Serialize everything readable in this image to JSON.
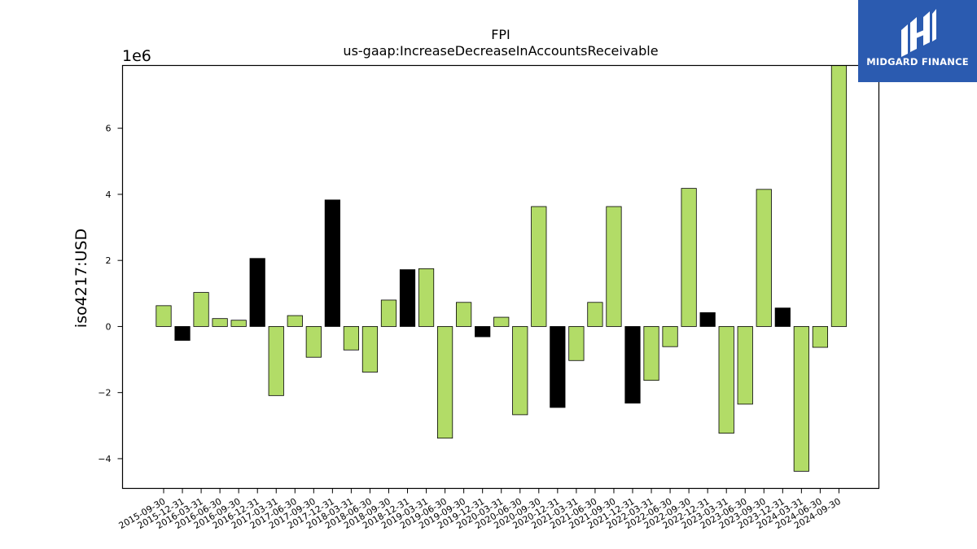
{
  "chart_data": {
    "type": "bar",
    "title": "FPI",
    "subtitle": "us-gaap:IncreaseDecreaseInAccountsReceivable",
    "ylabel": "iso4217:USD",
    "xlabel": "",
    "y_multiplier_label": "1e6",
    "ylim": [
      -4.9,
      7.9
    ],
    "yticks": [
      -4,
      -2,
      0,
      2,
      4,
      6
    ],
    "ytick_labels": [
      "−4",
      "−2",
      "0",
      "2",
      "4",
      "6"
    ],
    "grid": false,
    "legend": "none",
    "colors": {
      "positive": "#b2dc67",
      "negative": "#000000",
      "edge": "#000000"
    },
    "categories": [
      "2015-09-30",
      "2015-12-31",
      "2016-03-31",
      "2016-06-30",
      "2016-09-30",
      "2016-12-31",
      "2017-03-31",
      "2017-06-30",
      "2017-09-30",
      "2017-12-31",
      "2018-03-31",
      "2018-06-30",
      "2018-09-30",
      "2018-12-31",
      "2019-03-31",
      "2019-06-30",
      "2019-09-30",
      "2019-12-31",
      "2020-03-31",
      "2020-06-30",
      "2020-09-30",
      "2020-12-31",
      "2021-03-31",
      "2021-06-30",
      "2021-09-30",
      "2021-12-31",
      "2022-03-31",
      "2022-06-30",
      "2022-09-30",
      "2022-12-31",
      "2023-03-31",
      "2023-06-30",
      "2023-09-30",
      "2023-12-31",
      "2024-03-31",
      "2024-06-30",
      "2024-09-30"
    ],
    "values": [
      0.63,
      -0.42,
      1.03,
      0.24,
      0.19,
      2.06,
      -2.09,
      0.33,
      -0.93,
      3.83,
      -0.71,
      -1.38,
      0.8,
      1.72,
      1.75,
      -3.38,
      0.73,
      -0.31,
      0.28,
      -2.67,
      3.63,
      -2.45,
      -1.03,
      0.73,
      3.63,
      -2.32,
      -1.63,
      -0.61,
      4.18,
      0.42,
      -3.23,
      -2.35,
      4.15,
      0.56,
      -4.38,
      -0.63,
      7.9
    ],
    "bar_colors": [
      "positive",
      "negative",
      "positive",
      "positive",
      "positive",
      "negative",
      "positive",
      "positive",
      "positive",
      "negative",
      "positive",
      "positive",
      "positive",
      "negative",
      "positive",
      "positive",
      "positive",
      "negative",
      "positive",
      "positive",
      "positive",
      "negative",
      "positive",
      "positive",
      "positive",
      "negative",
      "positive",
      "positive",
      "positive",
      "negative",
      "positive",
      "positive",
      "positive",
      "negative",
      "positive",
      "positive",
      "positive"
    ]
  },
  "brand": {
    "name": "MIDGARD FINANCE",
    "icon": "midgard-logo-icon",
    "background": "#2b5bb0"
  }
}
